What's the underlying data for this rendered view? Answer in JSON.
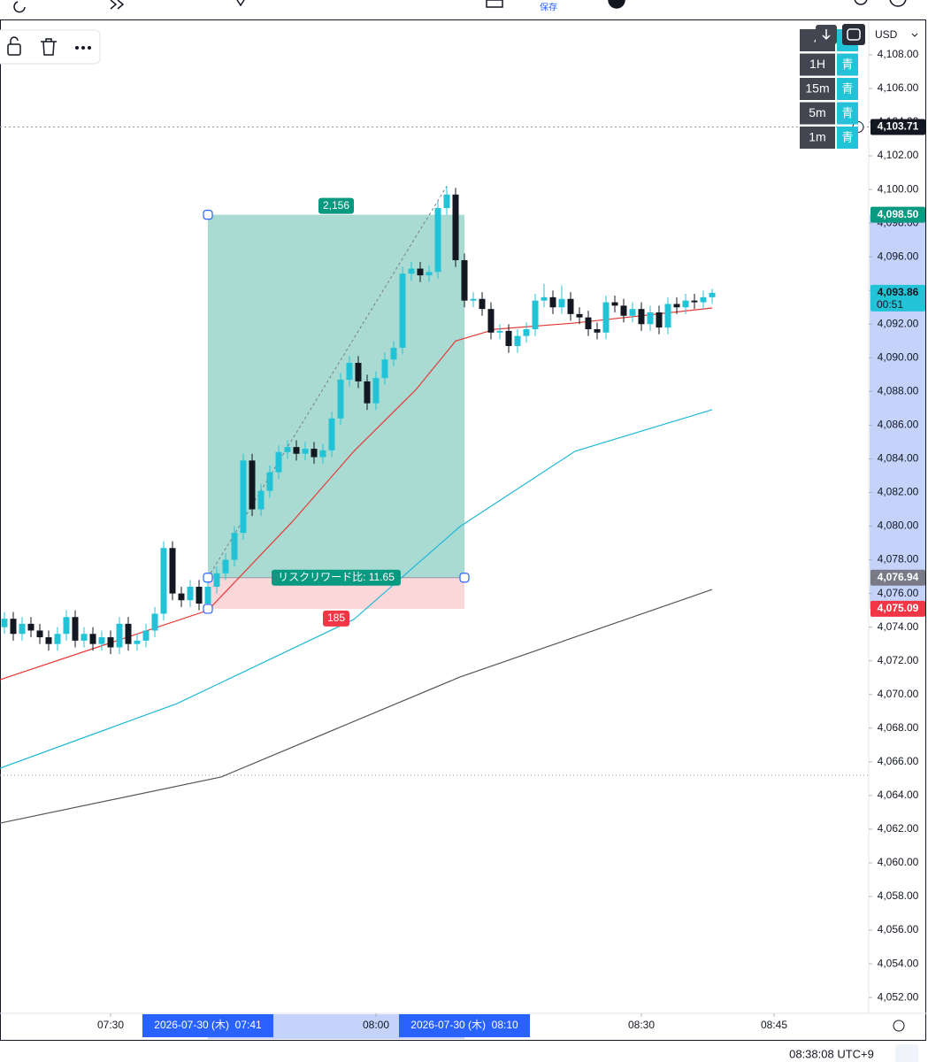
{
  "toolbar": {
    "save": "保存"
  },
  "intervals": [
    {
      "label": "4",
      "tag": "青"
    },
    {
      "label": "1H",
      "tag": "青"
    },
    {
      "label": "15m",
      "tag": "青"
    },
    {
      "label": "5m",
      "tag": "青"
    },
    {
      "label": "1m",
      "tag": "青"
    }
  ],
  "currency": "USD",
  "status": {
    "clock": "08:38:08 UTC+9"
  },
  "chart_data": {
    "type": "candlestick",
    "up_color": "#22c3d6",
    "down_color": "#131722",
    "x": [
      438,
      439,
      440,
      441,
      442,
      443,
      444,
      445,
      446,
      447,
      448,
      449,
      450,
      451,
      452,
      453,
      454,
      455,
      456,
      457,
      458,
      459,
      460,
      461,
      462,
      463,
      464,
      465,
      466,
      467,
      468,
      469,
      470,
      471,
      472,
      473,
      474,
      475,
      476,
      477,
      478,
      479,
      480,
      481,
      482,
      483,
      484,
      485,
      486,
      487,
      488,
      489,
      490,
      491,
      492,
      493,
      494,
      495,
      496,
      497,
      498,
      499,
      500,
      501,
      502,
      503,
      504,
      505,
      506,
      507,
      508,
      509,
      510,
      511,
      512,
      513,
      514,
      515,
      516,
      517,
      518
    ],
    "open": [
      4074.0,
      4074.5,
      4073.6,
      4074.2,
      4073.8,
      4073.4,
      4073.0,
      4073.6,
      4074.6,
      4073.2,
      4073.6,
      4073.0,
      4073.4,
      4072.8,
      4074.2,
      4073.0,
      4073.2,
      4073.8,
      4074.8,
      4078.7,
      4076.0,
      4075.6,
      4076.4,
      4075.4,
      4076.4,
      4077.2,
      4078.0,
      4079.6,
      4083.9,
      4081.0,
      4082.1,
      4083.2,
      4084.4,
      4084.7,
      4084.3,
      4084.6,
      4084.1,
      4084.5,
      4086.4,
      4088.7,
      4089.7,
      4088.6,
      4087.3,
      4088.8,
      4089.9,
      4090.6,
      4095.0,
      4095.3,
      4094.9,
      4095.1,
      4098.9,
      4099.7,
      4095.8,
      4093.4,
      4093.5,
      4092.9,
      4091.5,
      4091.6,
      4090.7,
      4091.3,
      4091.7,
      4093.4,
      4093.6,
      4093.0,
      4093.5,
      4092.6,
      4092.4,
      4091.7,
      4091.5,
      4093.3,
      4093.1,
      4092.5,
      4092.9,
      4092.0,
      4092.7,
      4091.8,
      4093.2,
      4093.0,
      4093.4,
      4093.3,
      4093.6
    ],
    "high": [
      4074.9,
      4074.9,
      4074.6,
      4074.6,
      4074.2,
      4073.8,
      4074.0,
      4075.0,
      4075.0,
      4074.0,
      4074.0,
      4073.8,
      4073.8,
      4074.6,
      4074.6,
      4073.6,
      4074.2,
      4075.2,
      4079.1,
      4079.1,
      4076.4,
      4076.8,
      4076.8,
      4076.8,
      4077.6,
      4078.4,
      4080.0,
      4084.3,
      4084.3,
      4082.5,
      4083.6,
      4084.8,
      4085.1,
      4085.1,
      4085.0,
      4085.0,
      4084.9,
      4086.8,
      4089.1,
      4090.1,
      4090.1,
      4089.0,
      4089.2,
      4090.3,
      4091.0,
      4095.4,
      4095.7,
      4095.7,
      4095.5,
      4099.3,
      4100.2,
      4100.1,
      4096.2,
      4093.9,
      4093.9,
      4093.3,
      4092.0,
      4092.0,
      4091.7,
      4092.1,
      4093.8,
      4094.4,
      4094.0,
      4094.3,
      4093.9,
      4093.0,
      4092.8,
      4092.1,
      4093.7,
      4093.7,
      4093.5,
      4093.3,
      4093.3,
      4093.1,
      4093.1,
      4093.6,
      4093.6,
      4093.8,
      4093.8,
      4094.0,
      4094.1
    ],
    "low": [
      4073.6,
      4073.2,
      4073.2,
      4073.4,
      4073.0,
      4072.6,
      4072.6,
      4073.2,
      4072.8,
      4072.8,
      4072.6,
      4072.6,
      4072.4,
      4072.4,
      4072.6,
      4072.6,
      4072.8,
      4073.4,
      4074.4,
      4075.6,
      4075.2,
      4075.2,
      4075.0,
      4075.0,
      4076.0,
      4076.8,
      4077.6,
      4079.2,
      4080.6,
      4080.6,
      4081.7,
      4082.8,
      4084.0,
      4083.9,
      4083.9,
      4083.7,
      4083.7,
      4084.1,
      4086.0,
      4088.3,
      4088.2,
      4086.9,
      4086.9,
      4088.4,
      4089.5,
      4090.2,
      4094.6,
      4094.5,
      4094.5,
      4094.7,
      4098.5,
      4095.4,
      4093.0,
      4093.0,
      4092.5,
      4091.1,
      4091.1,
      4090.3,
      4090.3,
      4090.9,
      4091.3,
      4093.0,
      4092.6,
      4092.6,
      4092.2,
      4092.0,
      4091.3,
      4091.1,
      4091.1,
      4092.7,
      4092.1,
      4092.1,
      4091.6,
      4091.6,
      4091.4,
      4091.4,
      4092.6,
      4092.6,
      4092.9,
      4092.9,
      4093.2
    ],
    "close": [
      4074.5,
      4073.6,
      4074.2,
      4073.8,
      4073.4,
      4073.0,
      4073.6,
      4074.6,
      4073.2,
      4073.6,
      4073.0,
      4073.4,
      4072.8,
      4074.2,
      4073.0,
      4073.2,
      4073.8,
      4074.8,
      4078.7,
      4076.0,
      4075.6,
      4076.4,
      4075.4,
      4076.4,
      4077.2,
      4078.0,
      4079.6,
      4083.9,
      4081.0,
      4082.1,
      4083.2,
      4084.4,
      4084.7,
      4084.3,
      4084.6,
      4084.1,
      4084.5,
      4086.4,
      4088.7,
      4089.7,
      4088.6,
      4087.3,
      4088.8,
      4089.9,
      4090.6,
      4095.0,
      4095.3,
      4094.9,
      4095.1,
      4098.9,
      4099.7,
      4095.8,
      4093.4,
      4093.5,
      4092.9,
      4091.5,
      4091.6,
      4090.7,
      4091.3,
      4091.7,
      4093.4,
      4093.6,
      4093.0,
      4093.5,
      4092.6,
      4092.4,
      4091.7,
      4091.5,
      4093.3,
      4093.1,
      4092.5,
      4092.9,
      4092.0,
      4092.7,
      4091.8,
      4093.2,
      4093.0,
      4093.4,
      4093.3,
      4093.6,
      4093.86
    ],
    "series": [
      {
        "color": "#e53935",
        "x": [
          437.5,
          461,
          470.5,
          477.5,
          484.5,
          489,
          493.5,
          502.5,
          518
        ],
        "values": [
          4070.88,
          4075.0,
          4080.24,
          4084.45,
          4088.1,
          4091.0,
          4091.7,
          4092.07,
          4092.96
        ]
      },
      {
        "color": "#1fb8d6",
        "x": [
          437.5,
          457.5,
          477.5,
          489.5,
          502.5,
          518
        ],
        "values": [
          4065.62,
          4069.46,
          4074.46,
          4079.98,
          4084.45,
          4086.92
        ]
      },
      {
        "color": "#555555",
        "x": [
          437.5,
          462.5,
          489.5,
          518
        ],
        "values": [
          4062.36,
          4065.1,
          4071.04,
          4076.24
        ]
      }
    ],
    "xlim": [
      437.5,
      535.7
    ],
    "ylim": [
      4051.06,
      4110.1
    ],
    "xticks": [
      {
        "value": 450,
        "label": "07:30"
      },
      {
        "value": 480,
        "label": "08:00"
      },
      {
        "value": 510,
        "label": "08:30"
      },
      {
        "value": 525,
        "label": "08:45"
      }
    ],
    "yticks": [
      {
        "value": 4052,
        "label": "4,052.00"
      },
      {
        "value": 4054,
        "label": "4,054.00"
      },
      {
        "value": 4056,
        "label": "4,056.00"
      },
      {
        "value": 4058,
        "label": "4,058.00"
      },
      {
        "value": 4060,
        "label": "4,060.00"
      },
      {
        "value": 4062,
        "label": "4,062.00"
      },
      {
        "value": 4064,
        "label": "4,064.00"
      },
      {
        "value": 4066,
        "label": "4,066.00"
      },
      {
        "value": 4068,
        "label": "4,068.00"
      },
      {
        "value": 4070,
        "label": "4,070.00"
      },
      {
        "value": 4072,
        "label": "4,072.00"
      },
      {
        "value": 4074,
        "label": "4,074.00"
      },
      {
        "value": 4076,
        "label": "4,076.00"
      },
      {
        "value": 4078,
        "label": "4,078.00"
      },
      {
        "value": 4080,
        "label": "4,080.00"
      },
      {
        "value": 4082,
        "label": "4,082.00"
      },
      {
        "value": 4084,
        "label": "4,084.00"
      },
      {
        "value": 4086,
        "label": "4,086.00"
      },
      {
        "value": 4088,
        "label": "4,088.00"
      },
      {
        "value": 4090,
        "label": "4,090.00"
      },
      {
        "value": 4092,
        "label": "4,092.00"
      },
      {
        "value": 4094,
        "label": "4,094.00"
      },
      {
        "value": 4096,
        "label": "4,096.00"
      },
      {
        "value": 4098,
        "label": "4,098.00"
      },
      {
        "value": 4100,
        "label": "4,100.00"
      },
      {
        "value": 4102,
        "label": "4,102.00"
      },
      {
        "value": 4104,
        "label": "4,104.00"
      },
      {
        "value": 4106,
        "label": "4,106.00"
      },
      {
        "value": 4108,
        "label": "4,108.00"
      }
    ],
    "position": {
      "x_start": 461,
      "x_end": 490,
      "target": {
        "value": 4098.5,
        "label": "4,098.50"
      },
      "entry": {
        "value": 4076.94,
        "label": "4,076.94"
      },
      "stop": {
        "value": 4075.09,
        "label": "4,075.09"
      },
      "target_text": "2,156",
      "ratio_text": "リスクリワード比: 11.65",
      "stop_text": "185",
      "start_time": "2026-07-30 (木)  07:41",
      "end_time": "2026-07-30 (木)  08:10"
    },
    "last_price": {
      "value": 4093.86,
      "label": "4,093.86",
      "countdown": "00:51"
    },
    "crosshair": {
      "value": 4103.71,
      "label": "4,103.71"
    }
  }
}
